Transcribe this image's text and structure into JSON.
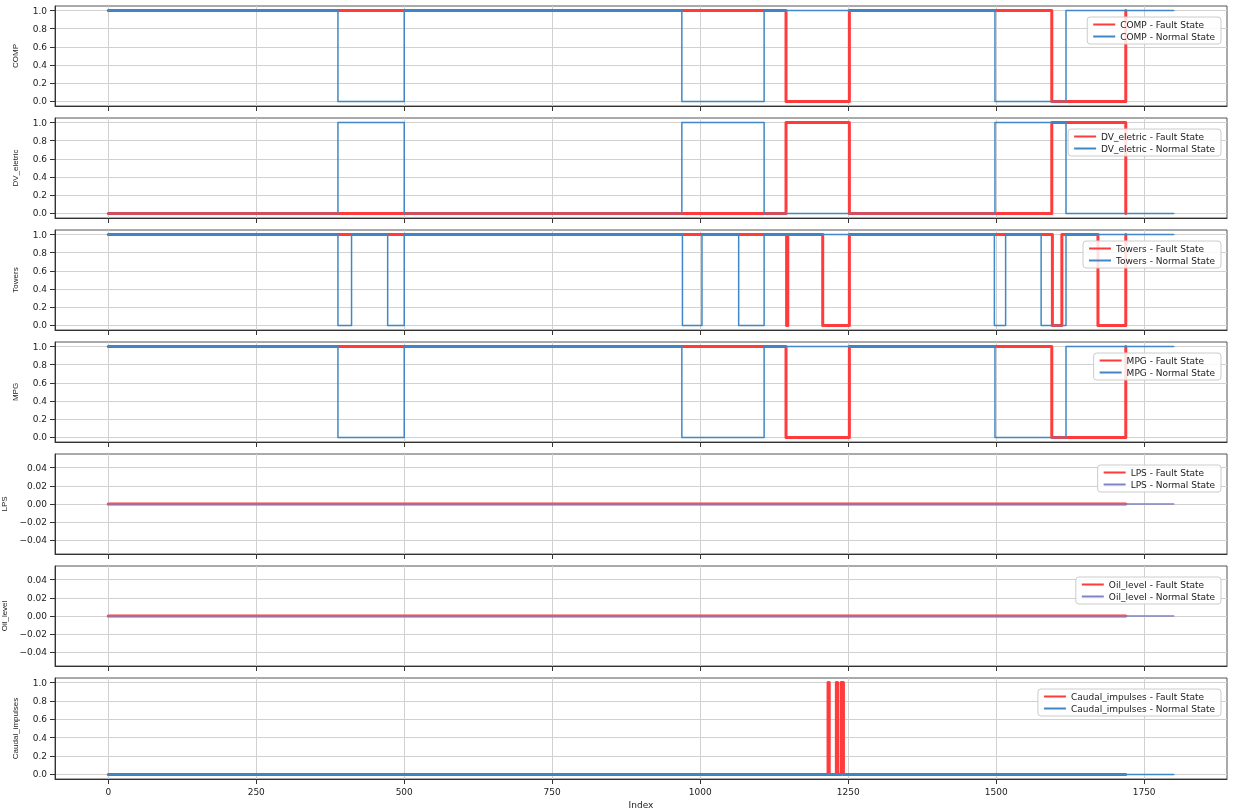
{
  "chart_data": [
    {
      "type": "step",
      "ylabel": "COMP",
      "xlim": [
        -90,
        1890
      ],
      "xticks": [
        0,
        250,
        500,
        750,
        1000,
        1250,
        1500,
        1750
      ],
      "ylim": [
        -0.05,
        1.05
      ],
      "yticks": [
        {
          "value": 0,
          "label": "0.0"
        },
        {
          "value": 0.2,
          "label": "0.2"
        },
        {
          "value": 0.4,
          "label": "0.4"
        },
        {
          "value": 0.6,
          "label": "0.6"
        },
        {
          "value": 0.8,
          "label": "0.8"
        },
        {
          "value": 1,
          "label": "1.0"
        }
      ],
      "grid": true,
      "legend": "top right",
      "tick_labels": "y",
      "series": [
        {
          "name": "COMP - Fault State",
          "color": "#ff3b3b",
          "x": [
            0,
            1145,
            1252,
            1594,
            1719
          ],
          "values": [
            1,
            0,
            1,
            0,
            1
          ]
        },
        {
          "name": "COMP - Normal State",
          "color": "#3f88c5",
          "x": [
            0,
            388,
            500,
            969,
            1108,
            1498,
            1618,
            1800
          ],
          "values": [
            1,
            0,
            1,
            0,
            1,
            0,
            1,
            1
          ]
        }
      ]
    },
    {
      "type": "step",
      "ylabel": "DV_eletric",
      "xlim": [
        -90,
        1890
      ],
      "xticks": [
        0,
        250,
        500,
        750,
        1000,
        1250,
        1500,
        1750
      ],
      "ylim": [
        -0.05,
        1.05
      ],
      "yticks": [
        {
          "value": 0,
          "label": "0.0"
        },
        {
          "value": 0.2,
          "label": "0.2"
        },
        {
          "value": 0.4,
          "label": "0.4"
        },
        {
          "value": 0.6,
          "label": "0.6"
        },
        {
          "value": 0.8,
          "label": "0.8"
        },
        {
          "value": 1,
          "label": "1.0"
        }
      ],
      "grid": true,
      "legend": "top right",
      "tick_labels": "y",
      "series": [
        {
          "name": "DV_eletric - Fault State",
          "color": "#ff3b3b",
          "x": [
            0,
            1145,
            1252,
            1594,
            1719
          ],
          "values": [
            0,
            1,
            0,
            1,
            0
          ]
        },
        {
          "name": "DV_eletric - Normal State",
          "color": "#3f88c5",
          "x": [
            0,
            388,
            500,
            969,
            1108,
            1498,
            1618,
            1800
          ],
          "values": [
            0,
            1,
            0,
            1,
            0,
            1,
            0,
            0
          ]
        }
      ]
    },
    {
      "type": "step",
      "ylabel": "Towers",
      "xlim": [
        -90,
        1890
      ],
      "xticks": [
        0,
        250,
        500,
        750,
        1000,
        1250,
        1500,
        1750
      ],
      "ylim": [
        -0.05,
        1.05
      ],
      "yticks": [
        {
          "value": 0,
          "label": "0.0"
        },
        {
          "value": 0.2,
          "label": "0.2"
        },
        {
          "value": 0.4,
          "label": "0.4"
        },
        {
          "value": 0.6,
          "label": "0.6"
        },
        {
          "value": 0.8,
          "label": "0.8"
        },
        {
          "value": 1,
          "label": "1.0"
        }
      ],
      "grid": true,
      "legend": "top right",
      "tick_labels": "y",
      "series": [
        {
          "name": "Towers - Fault State",
          "color": "#ff3b3b",
          "x": [
            0,
            1146,
            1148,
            1207,
            1252,
            1595,
            1611,
            1672,
            1719
          ],
          "values": [
            1,
            0,
            1,
            0,
            1,
            0,
            1,
            0,
            1
          ]
        },
        {
          "name": "Towers - Normal State",
          "color": "#3f88c5",
          "x": [
            0,
            388,
            411,
            472,
            500,
            970,
            1003,
            1065,
            1108,
            1497,
            1516,
            1576,
            1618,
            1800
          ],
          "values": [
            1,
            0,
            1,
            0,
            1,
            0,
            1,
            0,
            1,
            0,
            1,
            0,
            1,
            1
          ]
        }
      ]
    },
    {
      "type": "step",
      "ylabel": "MPG",
      "xlim": [
        -90,
        1890
      ],
      "xticks": [
        0,
        250,
        500,
        750,
        1000,
        1250,
        1500,
        1750
      ],
      "ylim": [
        -0.05,
        1.05
      ],
      "yticks": [
        {
          "value": 0,
          "label": "0.0"
        },
        {
          "value": 0.2,
          "label": "0.2"
        },
        {
          "value": 0.4,
          "label": "0.4"
        },
        {
          "value": 0.6,
          "label": "0.6"
        },
        {
          "value": 0.8,
          "label": "0.8"
        },
        {
          "value": 1,
          "label": "1.0"
        }
      ],
      "grid": true,
      "legend": "top right",
      "tick_labels": "y",
      "series": [
        {
          "name": "MPG - Fault State",
          "color": "#ff3b3b",
          "x": [
            0,
            1145,
            1252,
            1594,
            1719
          ],
          "values": [
            1,
            0,
            1,
            0,
            1
          ]
        },
        {
          "name": "MPG - Normal State",
          "color": "#3f88c5",
          "x": [
            0,
            388,
            500,
            969,
            1108,
            1498,
            1618,
            1800
          ],
          "values": [
            1,
            0,
            1,
            0,
            1,
            0,
            1,
            1
          ]
        }
      ]
    },
    {
      "type": "step",
      "ylabel": "LPS",
      "xlim": [
        -90,
        1890
      ],
      "xticks": [
        0,
        250,
        500,
        750,
        1000,
        1250,
        1500,
        1750
      ],
      "ylim": [
        -0.055,
        0.055
      ],
      "yticks": [
        {
          "value": -0.04,
          "label": "−0.04"
        },
        {
          "value": -0.02,
          "label": "−0.02"
        },
        {
          "value": 0,
          "label": "0.00"
        },
        {
          "value": 0.02,
          "label": "0.02"
        },
        {
          "value": 0.04,
          "label": "0.04"
        }
      ],
      "grid": true,
      "legend": "top right",
      "tick_labels": "y",
      "series": [
        {
          "name": "LPS - Fault State",
          "color": "#ff3b3b",
          "x": [
            0,
            1719
          ],
          "values": [
            0,
            0
          ]
        },
        {
          "name": "LPS - Normal State",
          "color": "#7f84c4",
          "x": [
            0,
            1800
          ],
          "values": [
            0,
            0
          ]
        }
      ]
    },
    {
      "type": "step",
      "ylabel": "Oil_level",
      "xlim": [
        -90,
        1890
      ],
      "xticks": [
        0,
        250,
        500,
        750,
        1000,
        1250,
        1500,
        1750
      ],
      "ylim": [
        -0.055,
        0.055
      ],
      "yticks": [
        {
          "value": -0.04,
          "label": "−0.04"
        },
        {
          "value": -0.02,
          "label": "−0.02"
        },
        {
          "value": 0,
          "label": "0.00"
        },
        {
          "value": 0.02,
          "label": "0.02"
        },
        {
          "value": 0.04,
          "label": "0.04"
        }
      ],
      "grid": true,
      "legend": "top right",
      "tick_labels": "y",
      "series": [
        {
          "name": "Oil_level - Fault State",
          "color": "#ff3b3b",
          "x": [
            0,
            1719
          ],
          "values": [
            0,
            0
          ]
        },
        {
          "name": "Oil_level - Normal State",
          "color": "#7f84c4",
          "x": [
            0,
            1800
          ],
          "values": [
            0,
            0
          ]
        }
      ]
    },
    {
      "type": "step",
      "ylabel": "Caudal_impulses",
      "xlabel": "Index",
      "xlim": [
        -90,
        1890
      ],
      "xticks": [
        0,
        250,
        500,
        750,
        1000,
        1250,
        1500,
        1750
      ],
      "ylim": [
        -0.05,
        1.05
      ],
      "yticks": [
        {
          "value": 0,
          "label": "0.0"
        },
        {
          "value": 0.2,
          "label": "0.2"
        },
        {
          "value": 0.4,
          "label": "0.4"
        },
        {
          "value": 0.6,
          "label": "0.6"
        },
        {
          "value": 0.8,
          "label": "0.8"
        },
        {
          "value": 1,
          "label": "1.0"
        }
      ],
      "grid": true,
      "legend": "top right",
      "series": [
        {
          "name": "Caudal_impulses - Fault State",
          "color": "#ff3b3b",
          "x": [
            0,
            1216,
            1218,
            1230,
            1232,
            1238,
            1242,
            1719
          ],
          "values": [
            0,
            1,
            0,
            1,
            0,
            1,
            0,
            0
          ]
        },
        {
          "name": "Caudal_impulses - Normal State",
          "color": "#3f88c5",
          "x": [
            0,
            1800
          ],
          "values": [
            0,
            0
          ]
        }
      ]
    }
  ]
}
